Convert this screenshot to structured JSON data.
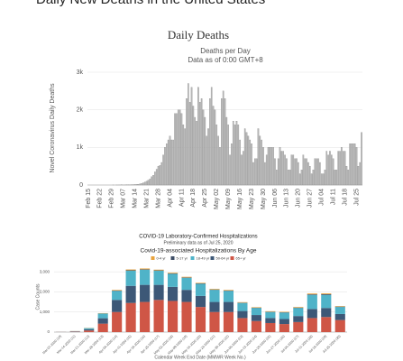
{
  "page_title": "Daily New Deaths in the United States",
  "chart_data": [
    {
      "type": "bar",
      "title": "Daily Deaths",
      "subtitle": "Deaths per Day",
      "note": "Data as of 0:00 GMT+8",
      "y_label": "Novel Coronavirus Daily Deaths",
      "color": "#b9b9b9",
      "grid": true,
      "ylim": [
        0,
        3000
      ],
      "yticks": [
        0,
        {
          "value": 1000,
          "label": "1k"
        },
        {
          "value": 2000,
          "label": "2k"
        },
        {
          "value": 3000,
          "label": "3k"
        }
      ],
      "categories": [
        "Feb 15",
        null,
        null,
        null,
        null,
        null,
        null,
        "Feb 22",
        null,
        null,
        null,
        null,
        null,
        null,
        "Feb 29",
        null,
        null,
        null,
        null,
        null,
        null,
        "Mar 07",
        null,
        null,
        null,
        null,
        null,
        null,
        "Mar 14",
        null,
        null,
        null,
        null,
        null,
        null,
        "Mar 21",
        null,
        null,
        null,
        null,
        null,
        null,
        "Mar 28",
        null,
        null,
        null,
        null,
        null,
        null,
        "Apr 04",
        null,
        null,
        null,
        null,
        null,
        null,
        "Apr 11",
        null,
        null,
        null,
        null,
        null,
        null,
        "Apr 18",
        null,
        null,
        null,
        null,
        null,
        null,
        "Apr 25",
        null,
        null,
        null,
        null,
        null,
        null,
        "May 02",
        null,
        null,
        null,
        null,
        null,
        null,
        "May 09",
        null,
        null,
        null,
        null,
        null,
        null,
        "May 16",
        null,
        null,
        null,
        null,
        null,
        null,
        "May 23",
        null,
        null,
        null,
        null,
        null,
        null,
        "May 30",
        null,
        null,
        null,
        null,
        null,
        null,
        "Jun 06",
        null,
        null,
        null,
        null,
        null,
        null,
        "Jun 13",
        null,
        null,
        null,
        null,
        null,
        null,
        "Jun 20",
        null,
        null,
        null,
        null,
        null,
        null,
        "Jun 27",
        null,
        null,
        null,
        null,
        null,
        null,
        "Jul 04",
        null,
        null,
        null,
        null,
        null,
        null,
        "Jul 11",
        null,
        null,
        null,
        null,
        null,
        null,
        "Jul 18",
        null,
        null,
        null,
        null,
        null,
        null,
        "Jul 25",
        null,
        null,
        null
      ],
      "values": [
        0,
        0,
        0,
        0,
        0,
        0,
        0,
        0,
        0,
        0,
        0,
        0,
        0,
        0,
        0,
        1,
        0,
        1,
        2,
        3,
        4,
        2,
        3,
        4,
        5,
        8,
        10,
        12,
        15,
        18,
        20,
        30,
        40,
        60,
        80,
        100,
        130,
        160,
        220,
        260,
        350,
        420,
        500,
        520,
        600,
        800,
        1000,
        1100,
        1200,
        1300,
        1200,
        1200,
        1900,
        1900,
        2000,
        2000,
        1900,
        1600,
        1500,
        2300,
        2700,
        2200,
        2600,
        2100,
        1800,
        1700,
        2600,
        2200,
        2300,
        2000,
        1800,
        1300,
        1500,
        2300,
        2600,
        2100,
        2000,
        1600,
        1300,
        1000,
        2300,
        2500,
        2300,
        1800,
        1600,
        800,
        1100,
        1700,
        1600,
        1700,
        1600,
        1200,
        800,
        900,
        1500,
        1400,
        1300,
        1200,
        1100,
        600,
        700,
        700,
        1500,
        1300,
        1200,
        1000,
        600,
        800,
        1000,
        1000,
        1000,
        1000,
        700,
        400,
        700,
        1000,
        900,
        900,
        800,
        700,
        400,
        400,
        800,
        800,
        700,
        700,
        600,
        300,
        400,
        800,
        700,
        700,
        600,
        500,
        300,
        400,
        700,
        700,
        700,
        600,
        300,
        300,
        400,
        900,
        800,
        900,
        800,
        700,
        400,
        400,
        900,
        900,
        1000,
        900,
        900,
        500,
        400,
        1100,
        1100,
        1100,
        1100,
        1000,
        500,
        600,
        1400
      ]
    },
    {
      "type": "bar",
      "stacked": true,
      "title": "COVID-19 Laboratory-Confirmed Hospitalizations",
      "subtitle": "Preliminary data as of Jul 25, 2020",
      "note": "Covid-19-associated Hospitalizations By Age",
      "y_label": "Case Counts",
      "x_label": "Calendar Week End Date (MMWR Week No.)",
      "grid": true,
      "ylim": [
        0,
        3500
      ],
      "yticks": [
        0,
        {
          "value": 1000,
          "label": "1,000"
        },
        {
          "value": 2000,
          "label": "2,000"
        },
        {
          "value": 3000,
          "label": "3,000"
        }
      ],
      "categories": [
        "Mar-07-2020 (10)",
        "Mar-14-2020 (11)",
        "Mar-21-2020 (12)",
        "Mar-28-2020 (13)",
        "Apr-04-2020 (14)",
        "Apr-11-2020 (15)",
        "Apr-18-2020 (16)",
        "Apr-25-2020 (17)",
        "May-02-2020 (18)",
        "May-09-2020 (19)",
        "May-16-2020 (20)",
        "May-23-2020 (21)",
        "May-30-2020 (22)",
        "Jun-06-2020 (23)",
        "Jun-13-2020 (24)",
        "Jun-20-2020 (25)",
        "Jun-27-2020 (26)",
        "Jul-04-2020 (27)",
        "Jul-11-2020 (28)",
        "Jul-18-2020 (29)",
        "Jul-25-2020 (30)"
      ],
      "series": [
        {
          "name": "0-4 yr",
          "color": "#e8a33d",
          "values": [
            0,
            3,
            8,
            15,
            30,
            40,
            40,
            35,
            35,
            30,
            30,
            30,
            30,
            25,
            25,
            25,
            25,
            30,
            40,
            40,
            25
          ]
        },
        {
          "name": "5-17 yr",
          "color": "#3e4e66",
          "values": [
            0,
            2,
            5,
            10,
            20,
            25,
            25,
            20,
            20,
            20,
            20,
            20,
            20,
            15,
            15,
            15,
            15,
            20,
            30,
            35,
            20
          ]
        },
        {
          "name": "18-49 yr",
          "color": "#4fb3c8",
          "values": [
            2,
            12,
            55,
            230,
            450,
            750,
            750,
            700,
            650,
            600,
            600,
            600,
            550,
            400,
            350,
            300,
            320,
            400,
            700,
            650,
            350
          ]
        },
        {
          "name": "50-64 yr",
          "color": "#3d5877",
          "values": [
            3,
            15,
            60,
            270,
            600,
            850,
            850,
            750,
            700,
            600,
            550,
            500,
            500,
            350,
            300,
            250,
            250,
            300,
            450,
            450,
            300
          ]
        },
        {
          "name": "65+ yr",
          "color": "#cf5646",
          "values": [
            5,
            20,
            80,
            420,
            1000,
            1450,
            1500,
            1600,
            1550,
            1500,
            1250,
            1000,
            1000,
            700,
            550,
            450,
            400,
            500,
            700,
            750,
            600
          ]
        }
      ]
    }
  ]
}
